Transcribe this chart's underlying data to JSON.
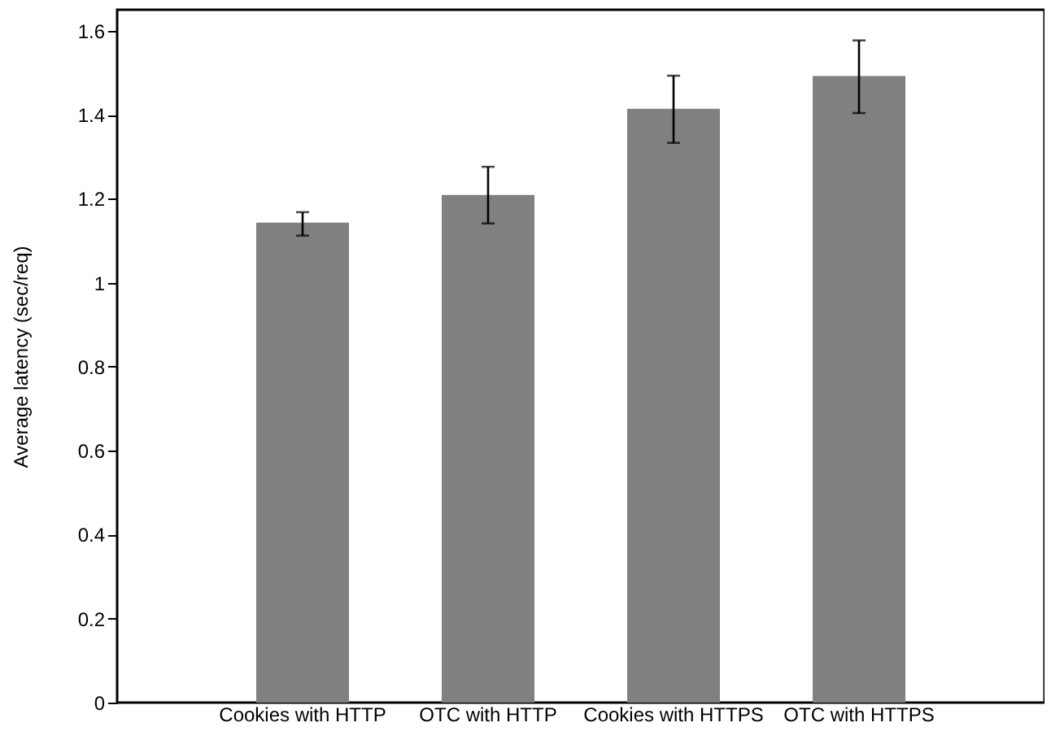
{
  "chart_data": {
    "type": "bar",
    "ylabel": "Average latency (sec/req)",
    "categories": [
      "Cookies with HTTP",
      "OTC with HTTP",
      "Cookies with HTTPS",
      "OTC with HTTPS"
    ],
    "values": [
      1.143,
      1.209,
      1.414,
      1.492
    ],
    "color": "#808080",
    "errors": [
      [
        1.112,
        1.168
      ],
      [
        1.141,
        1.276
      ],
      [
        1.333,
        1.493
      ],
      [
        1.404,
        1.577
      ]
    ],
    "ylim": [
      0,
      1.65
    ],
    "yticks": [
      0,
      0.2,
      0.4,
      0.6,
      0.8,
      1,
      1.2,
      1.4,
      1.6
    ],
    "grid": false
  }
}
